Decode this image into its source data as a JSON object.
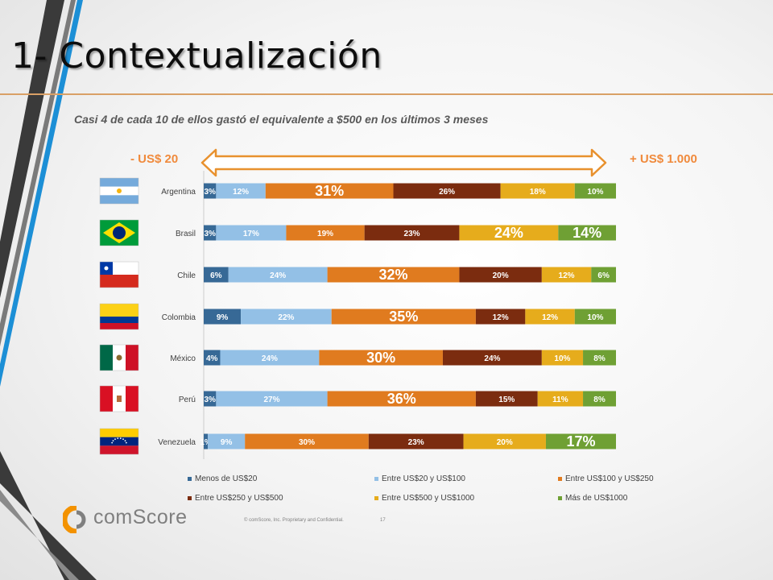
{
  "slide": {
    "title": "1- Contextualización"
  },
  "annotations": {
    "low_range": "- US$ 20",
    "high_range": "+ US$ 1.000"
  },
  "chart_data": {
    "type": "bar",
    "orientation": "horizontal",
    "stacked": true,
    "normalized": true,
    "title": "Casi 4 de cada 10 de ellos gastó el equivalente a $500 en los últimos 3 meses",
    "categories": [
      "Argentina",
      "Brasil",
      "Chile",
      "Colombia",
      "México",
      "Perú",
      "Venezuela"
    ],
    "value_labels_suffix": "%",
    "series": [
      {
        "name": "Menos de US$20",
        "color": "#376996",
        "values": [
          3,
          3,
          6,
          9,
          4,
          3,
          1
        ]
      },
      {
        "name": "Entre US$20 y US$100",
        "color": "#93c0e6",
        "values": [
          12,
          17,
          24,
          22,
          24,
          27,
          9
        ]
      },
      {
        "name": "Entre US$100 y US$250",
        "color": "#e07b1f",
        "values": [
          31,
          19,
          32,
          35,
          30,
          36,
          30
        ]
      },
      {
        "name": "Entre US$250 y US$500",
        "color": "#7b2c0f",
        "values": [
          26,
          23,
          20,
          12,
          24,
          15,
          23
        ]
      },
      {
        "name": "Entre US$500 y US$1000",
        "color": "#e6ac1c",
        "values": [
          18,
          24,
          12,
          12,
          10,
          11,
          20
        ]
      },
      {
        "name": "Más de US$1000",
        "color": "#6fa034",
        "values": [
          10,
          14,
          6,
          10,
          8,
          8,
          17
        ]
      }
    ],
    "emphasized_labels": [
      {
        "category": "Argentina",
        "series": "Entre US$100 y US$250"
      },
      {
        "category": "Brasil",
        "series": "Entre US$500 y US$1000"
      },
      {
        "category": "Brasil",
        "series": "Más de US$1000"
      },
      {
        "category": "Chile",
        "series": "Entre US$100 y US$250"
      },
      {
        "category": "Colombia",
        "series": "Entre US$100 y US$250"
      },
      {
        "category": "México",
        "series": "Entre US$100 y US$250"
      },
      {
        "category": "Perú",
        "series": "Entre US$100 y US$250"
      },
      {
        "category": "Venezuela",
        "series": "Más de US$1000"
      }
    ],
    "legend_position": "bottom",
    "grid": false
  },
  "footer": {
    "logo_text": "comScore",
    "note": "© comScore, Inc.  Proprietary and Confidential.",
    "page": "17"
  },
  "colors": {
    "title_rule": "#d9a066",
    "range_text": "#f08a3c",
    "flag_argentina": [
      "#75aadb",
      "#ffffff",
      "#75aadb"
    ],
    "flag_brasil": [
      "#009b3a",
      "#fedf00",
      "#002776"
    ],
    "flag_chile": [
      "#0039a6",
      "#ffffff",
      "#d52b1e"
    ],
    "flag_colombia": [
      "#fcd116",
      "#003893",
      "#ce1126"
    ],
    "flag_mexico": [
      "#006847",
      "#ffffff",
      "#ce1126"
    ],
    "flag_peru": [
      "#d91023",
      "#ffffff",
      "#d91023"
    ],
    "flag_venezuela": [
      "#ffcc00",
      "#00247d",
      "#cf142b"
    ]
  }
}
